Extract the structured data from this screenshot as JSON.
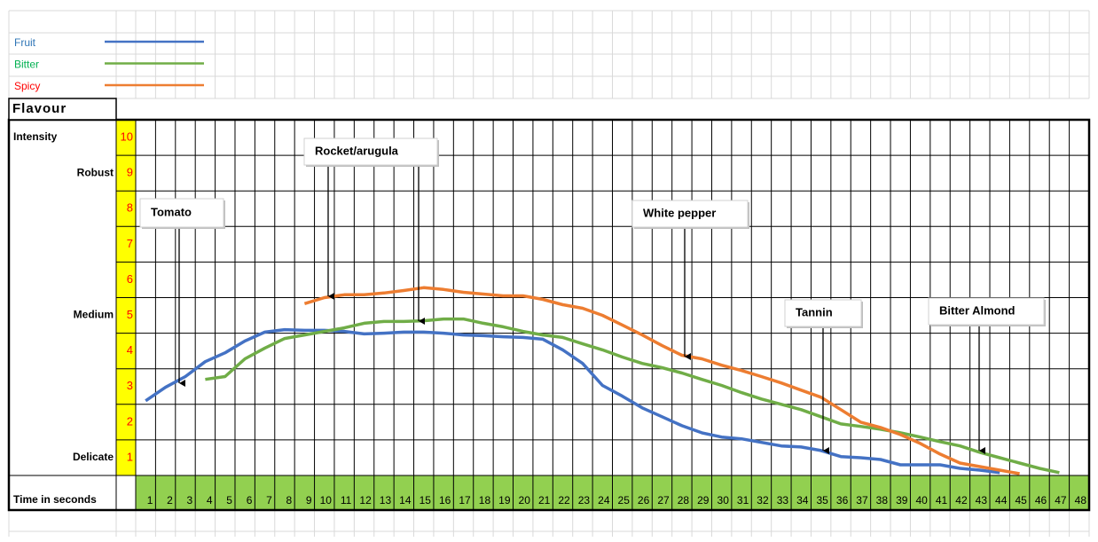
{
  "chart_data": {
    "type": "line",
    "title": "Flavour",
    "x_label": "Time in seconds",
    "x": [
      1,
      2,
      3,
      4,
      5,
      6,
      7,
      8,
      9,
      10,
      11,
      12,
      13,
      14,
      15,
      16,
      17,
      18,
      19,
      20,
      21,
      22,
      23,
      24,
      25,
      26,
      27,
      28,
      29,
      30,
      31,
      32,
      33,
      34,
      35,
      36,
      37,
      38,
      39,
      40,
      41,
      42,
      43,
      44,
      45,
      46,
      47,
      48
    ],
    "xlim": [
      0.5,
      48.5
    ],
    "xticks": [
      1,
      2,
      3,
      4,
      5,
      6,
      7,
      8,
      9,
      10,
      11,
      12,
      13,
      14,
      15,
      16,
      17,
      18,
      19,
      20,
      21,
      22,
      23,
      24,
      25,
      26,
      27,
      28,
      29,
      30,
      31,
      32,
      33,
      34,
      35,
      36,
      37,
      38,
      39,
      40,
      41,
      42,
      43,
      44,
      45,
      46,
      47,
      48
    ],
    "ylim": [
      0.5,
      10.5
    ],
    "yticks": [
      1,
      2,
      3,
      4,
      5,
      6,
      7,
      8,
      9,
      10
    ],
    "ytick_color": "#ff0000",
    "row_labels": [
      {
        "value": 10,
        "label": "Intensity"
      },
      {
        "value": 9,
        "label": "Robust"
      },
      {
        "value": 5,
        "label": "Medium"
      },
      {
        "value": 1,
        "label": "Delicate"
      }
    ],
    "series": [
      {
        "name": "Fruit",
        "color": "#4472c4",
        "legend_text_color": "#2e75b6",
        "values": [
          2.6,
          2.98,
          3.28,
          3.7,
          3.95,
          4.28,
          4.53,
          4.6,
          4.58,
          4.58,
          4.55,
          4.48,
          4.5,
          4.53,
          4.53,
          4.5,
          4.45,
          4.43,
          4.4,
          4.38,
          4.33,
          4.03,
          3.65,
          3.03,
          2.73,
          2.4,
          2.15,
          1.9,
          1.7,
          1.58,
          1.53,
          1.43,
          1.33,
          1.3,
          1.2,
          1.03,
          1.0,
          0.95,
          0.8,
          0.8,
          0.8,
          0.7,
          0.65,
          0.58,
          null,
          null,
          null,
          null
        ]
      },
      {
        "name": "Bitter",
        "color": "#70ad47",
        "legend_text_color": "#00b050",
        "values": [
          null,
          null,
          null,
          3.2,
          3.28,
          3.78,
          4.08,
          4.35,
          4.45,
          4.55,
          4.65,
          4.78,
          4.83,
          4.83,
          4.85,
          4.9,
          4.9,
          4.78,
          4.68,
          4.55,
          4.45,
          4.38,
          4.2,
          4.03,
          3.83,
          3.65,
          3.53,
          3.38,
          3.2,
          3.03,
          2.83,
          2.65,
          2.5,
          2.35,
          2.15,
          1.95,
          1.88,
          1.8,
          1.7,
          1.58,
          1.45,
          1.33,
          1.15,
          1.0,
          0.85,
          0.7,
          0.58,
          null
        ]
      },
      {
        "name": "Spicy",
        "color": "#ed7d31",
        "legend_text_color": "#ff0000",
        "values": [
          null,
          null,
          null,
          null,
          null,
          null,
          null,
          null,
          5.33,
          5.5,
          5.58,
          5.58,
          5.63,
          5.7,
          5.78,
          5.73,
          5.65,
          5.6,
          5.55,
          5.55,
          5.45,
          5.3,
          5.2,
          5.0,
          4.73,
          4.45,
          4.15,
          3.88,
          3.78,
          3.6,
          3.45,
          3.28,
          3.1,
          2.9,
          2.7,
          2.35,
          2.0,
          1.85,
          1.65,
          1.4,
          1.1,
          0.85,
          0.75,
          0.65,
          0.55,
          null,
          null,
          null
        ]
      }
    ],
    "annotations": [
      "Tomato",
      "Rocket/arugula",
      "White pepper",
      "Tannin",
      "Bitter Almond"
    ]
  }
}
